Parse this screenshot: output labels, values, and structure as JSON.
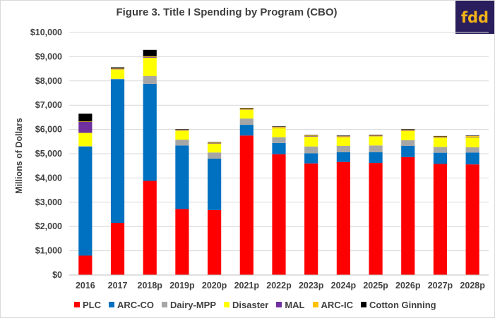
{
  "logo": {
    "text": "fdd"
  },
  "chart_data": {
    "type": "bar",
    "stacked": true,
    "title": "Figure 3. Title I Spending by Program (CBO)",
    "xlabel": "",
    "ylabel": "Millions of Dollars",
    "ylim": [
      0,
      10000
    ],
    "yticks": [
      0,
      1000,
      2000,
      3000,
      4000,
      5000,
      6000,
      7000,
      8000,
      9000,
      10000
    ],
    "ytick_labels": [
      "$0",
      "$1,000",
      "$2,000",
      "$3,000",
      "$4,000",
      "$5,000",
      "$6,000",
      "$7,000",
      "$8,000",
      "$9,000",
      "$10,000"
    ],
    "grid": true,
    "legend_position": "bottom",
    "categories": [
      "2016",
      "2017",
      "2018p",
      "2019p",
      "2020p",
      "2021p",
      "2022p",
      "2023p",
      "2024p",
      "2025p",
      "2026p",
      "2027p",
      "2028p"
    ],
    "series": [
      {
        "name": "PLC",
        "color": "#ff0000",
        "values": [
          800,
          2150,
          3880,
          2720,
          2680,
          5750,
          4980,
          4600,
          4660,
          4620,
          4860,
          4580,
          4560
        ]
      },
      {
        "name": "ARC-CO",
        "color": "#0070c0",
        "values": [
          4500,
          5920,
          4000,
          2620,
          2120,
          440,
          460,
          420,
          400,
          440,
          460,
          460,
          490
        ]
      },
      {
        "name": "Dairy-MPP",
        "color": "#a6a6a6",
        "values": [
          10,
          20,
          320,
          240,
          250,
          260,
          240,
          280,
          260,
          280,
          240,
          240,
          220
        ]
      },
      {
        "name": "Disaster",
        "color": "#ffff00",
        "values": [
          550,
          390,
          760,
          370,
          370,
          370,
          380,
          400,
          370,
          380,
          380,
          380,
          410
        ]
      },
      {
        "name": "MAL",
        "color": "#7030a0",
        "values": [
          450,
          20,
          30,
          20,
          20,
          20,
          20,
          20,
          20,
          20,
          20,
          20,
          20
        ]
      },
      {
        "name": "ARC-IC",
        "color": "#ffc000",
        "values": [
          20,
          20,
          30,
          20,
          20,
          30,
          30,
          30,
          20,
          20,
          30,
          30,
          30
        ]
      },
      {
        "name": "Cotton Ginning",
        "color": "#000000",
        "values": [
          320,
          40,
          260,
          20,
          20,
          20,
          20,
          20,
          20,
          20,
          20,
          20,
          20
        ]
      }
    ]
  }
}
